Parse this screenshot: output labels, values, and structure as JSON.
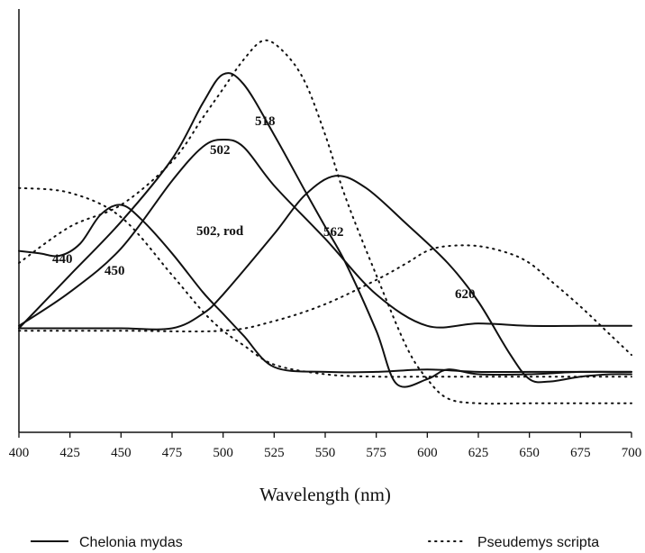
{
  "chart_data": {
    "type": "line",
    "title": "",
    "xlabel": "Wavelength (nm)",
    "ylabel": "",
    "xlim": [
      400,
      700
    ],
    "ylim": [
      -0.3,
      1.45
    ],
    "x_ticks": [
      "400",
      "425",
      "450",
      "475",
      "500",
      "525",
      "550",
      "575",
      "600",
      "625",
      "650",
      "675",
      "700"
    ],
    "grid": false,
    "legend_position": "bottom",
    "legend": [
      {
        "label": "Chelonia mydas",
        "style": "solid"
      },
      {
        "label": "Pseudemys scripta",
        "style": "dotted"
      }
    ],
    "series": [
      {
        "group": "Chelonia mydas",
        "style": "solid",
        "peak": 440,
        "x": [
          400,
          410,
          420,
          430,
          440,
          450,
          460,
          475,
          490,
          500,
          510,
          525,
          550,
          575,
          600,
          625,
          650,
          675,
          700
        ],
        "y": [
          0.45,
          0.44,
          0.43,
          0.48,
          0.6,
          0.64,
          0.58,
          0.44,
          0.28,
          0.19,
          0.1,
          -0.03,
          -0.05,
          -0.05,
          -0.04,
          -0.05,
          -0.05,
          -0.05,
          -0.05
        ]
      },
      {
        "group": "Chelonia mydas",
        "style": "solid",
        "peak": 450,
        "x": [
          400,
          425,
          450,
          475,
          490,
          500,
          510,
          525,
          540,
          550,
          560,
          575,
          585,
          600,
          610,
          625,
          650,
          675,
          700
        ],
        "y": [
          0.13,
          0.35,
          0.57,
          0.83,
          1.06,
          1.18,
          1.14,
          0.93,
          0.7,
          0.55,
          0.4,
          0.12,
          -0.1,
          -0.08,
          -0.04,
          -0.06,
          -0.06,
          -0.05,
          -0.05
        ]
      },
      {
        "group": "Chelonia mydas",
        "style": "solid",
        "peak": 502,
        "x": [
          400,
          425,
          450,
          475,
          490,
          500,
          510,
          525,
          550,
          575,
          600,
          625,
          650,
          675,
          700
        ],
        "y": [
          0.14,
          0.28,
          0.46,
          0.74,
          0.88,
          0.91,
          0.88,
          0.72,
          0.5,
          0.27,
          0.14,
          0.15,
          0.14,
          0.14,
          0.14
        ]
      },
      {
        "group": "Chelonia mydas",
        "style": "solid",
        "peak": 562,
        "x": [
          400,
          425,
          450,
          475,
          490,
          500,
          525,
          540,
          555,
          570,
          590,
          610,
          625,
          640,
          650,
          660,
          675,
          690,
          700
        ],
        "y": [
          0.13,
          0.13,
          0.13,
          0.13,
          0.19,
          0.27,
          0.52,
          0.68,
          0.76,
          0.71,
          0.56,
          0.4,
          0.24,
          0.03,
          -0.08,
          -0.09,
          -0.07,
          -0.06,
          -0.06
        ]
      },
      {
        "group": "Pseudemys scripta",
        "style": "dotted",
        "peak": 502,
        "x": [
          400,
          425,
          450,
          475,
          490,
          500,
          510,
          525,
          550,
          575,
          600,
          625,
          650,
          675,
          700
        ],
        "y": [
          0.71,
          0.69,
          0.59,
          0.35,
          0.2,
          0.12,
          0.06,
          -0.02,
          -0.06,
          -0.07,
          -0.07,
          -0.07,
          -0.07,
          -0.07,
          -0.07
        ]
      },
      {
        "group": "Pseudemys scripta",
        "style": "dotted",
        "peak": 518,
        "x": [
          400,
          425,
          450,
          475,
          490,
          500,
          510,
          520,
          530,
          540,
          550,
          560,
          575,
          590,
          600,
          610,
          625,
          650,
          675,
          700
        ],
        "y": [
          0.4,
          0.55,
          0.64,
          0.82,
          1.0,
          1.12,
          1.24,
          1.32,
          1.27,
          1.15,
          0.93,
          0.67,
          0.35,
          0.05,
          -0.08,
          -0.16,
          -0.18,
          -0.18,
          -0.18,
          -0.18
        ]
      },
      {
        "group": "Pseudemys scripta",
        "style": "dotted",
        "peak": 620,
        "x": [
          400,
          450,
          500,
          525,
          550,
          575,
          590,
          600,
          610,
          625,
          640,
          650,
          660,
          675,
          690,
          700
        ],
        "y": [
          0.12,
          0.12,
          0.12,
          0.16,
          0.23,
          0.33,
          0.4,
          0.45,
          0.47,
          0.47,
          0.44,
          0.4,
          0.33,
          0.22,
          0.1,
          0.02
        ]
      }
    ],
    "annotations": [
      "440",
      "450",
      "502",
      "502, rod",
      "518",
      "562",
      "620"
    ]
  }
}
